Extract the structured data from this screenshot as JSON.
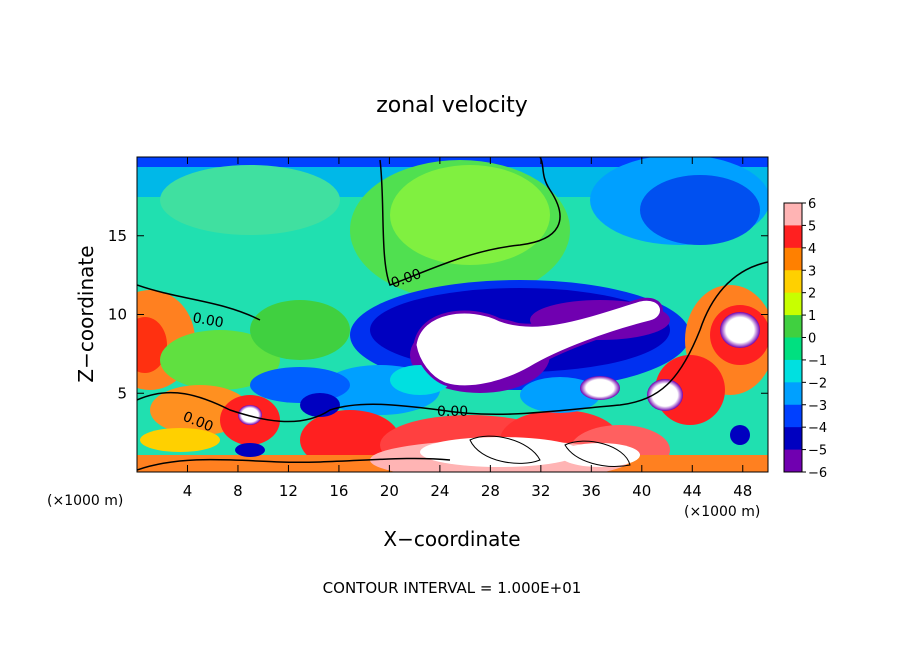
{
  "chart_data": {
    "type": "heatmap",
    "title": "zonal velocity",
    "xlabel": "X−coordinate",
    "ylabel": "Z−coordinate",
    "x_unit_left": "(×1000 m)",
    "x_unit_right": "(×1000 m)",
    "footer": "CONTOUR INTERVAL = 1.000E+01",
    "xlim": [
      0,
      50
    ],
    "ylim": [
      0,
      20
    ],
    "x_ticks": [
      4,
      8,
      12,
      16,
      20,
      24,
      28,
      32,
      36,
      40,
      44,
      48
    ],
    "y_ticks": [
      5,
      10,
      15
    ],
    "colorbar": {
      "range": [
        -6,
        6
      ],
      "ticks": [
        6,
        5,
        4,
        3,
        2,
        1,
        0,
        -1,
        -2,
        -3,
        -4,
        -5,
        -6
      ],
      "tick_labels": [
        "6",
        "5",
        "4",
        "3",
        "2",
        "1",
        "0",
        "−1",
        "−2",
        "−3",
        "−4",
        "−5",
        "−6"
      ],
      "colors": [
        "#ffb4b4",
        "#ff2020",
        "#ff8000",
        "#ffd000",
        "#c8ff00",
        "#40d040",
        "#00e080",
        "#00e0e0",
        "#00a0ff",
        "#0040ff",
        "#0000c0",
        "#7000b0"
      ]
    },
    "contour_labels": [
      "0.00",
      "0.00",
      "0.00",
      "0.00"
    ]
  }
}
